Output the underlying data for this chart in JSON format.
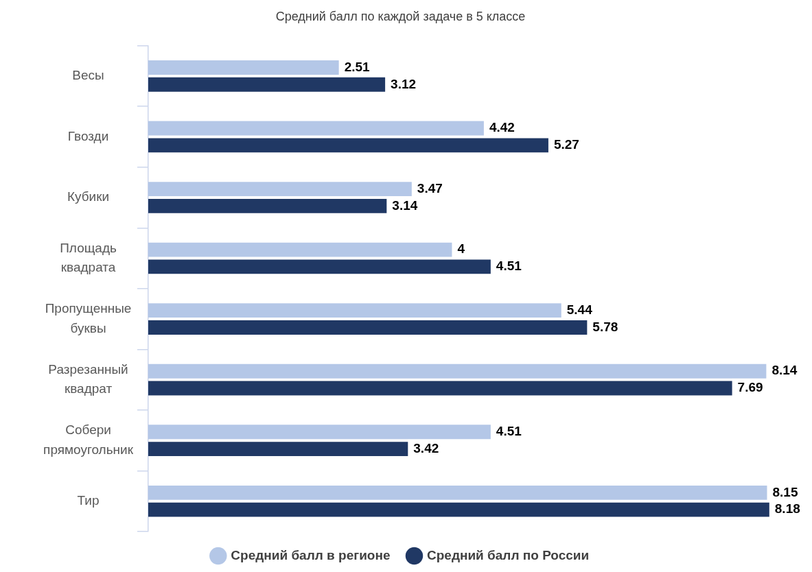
{
  "chart_data": {
    "type": "bar",
    "orientation": "horizontal",
    "title": "Средний балл по каждой задаче в 5 классе",
    "categories": [
      "Весы",
      "Гвозди",
      "Кубики",
      "Площадь квадрата",
      "Пропущенные буквы",
      "Разрезанный квадрат",
      "Собери прямоугольник",
      "Тир"
    ],
    "series": [
      {
        "name": "Средний балл в регионе",
        "color": "#b4c7e7",
        "values": [
          2.51,
          4.42,
          3.47,
          4,
          5.44,
          8.14,
          4.51,
          8.15
        ]
      },
      {
        "name": "Средний балл по России",
        "color": "#203864",
        "values": [
          3.12,
          5.27,
          3.14,
          4.51,
          5.78,
          7.69,
          3.42,
          8.18
        ]
      }
    ],
    "tick_labels": "y",
    "data_labels": true,
    "legend": "bottom"
  }
}
